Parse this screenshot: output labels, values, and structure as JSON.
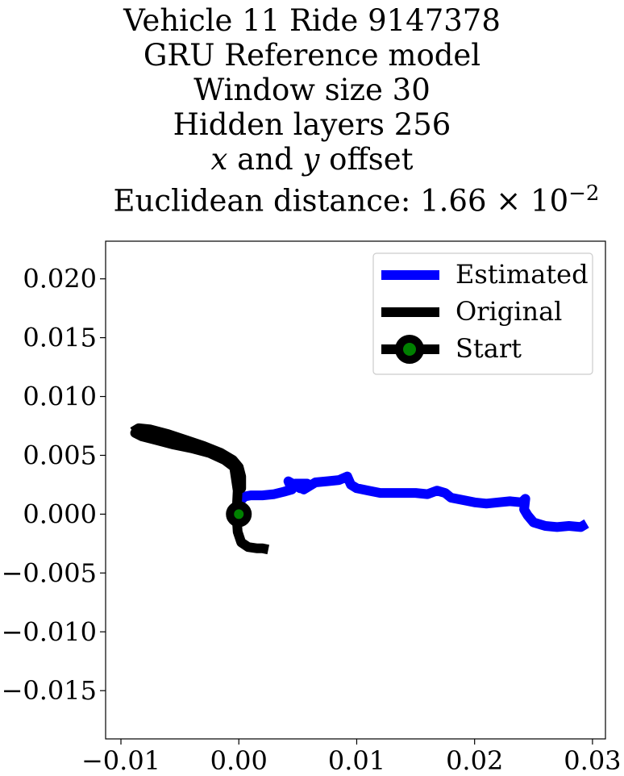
{
  "chart_data": {
    "type": "line",
    "title_lines": [
      "Vehicle 11 Ride 9147378",
      "GRU Reference model",
      "Window size 30",
      "Hidden layers 256",
      "x and y offset",
      "Euclidean distance: 1.66 × 10⁻²"
    ],
    "title_line5": {
      "var_x": "x",
      "and": " and ",
      "var_y": "y",
      "rest": " offset"
    },
    "title_line6": {
      "prefix": "Euclidean distance: 1.66 × 10",
      "exponent": "−2"
    },
    "xlabel": "",
    "ylabel": "",
    "xlim": [
      -0.0113,
      0.0311
    ],
    "ylim": [
      -0.0191,
      0.0232
    ],
    "x_ticks": [
      -0.01,
      0.0,
      0.01,
      0.02,
      0.03
    ],
    "x_tick_labels": [
      "−0.01",
      "0.00",
      "0.01",
      "0.02",
      "0.03"
    ],
    "y_ticks": [
      0.02,
      0.015,
      0.01,
      0.005,
      0.0,
      -0.005,
      -0.01,
      -0.015
    ],
    "y_tick_labels": [
      "0.020",
      "0.015",
      "0.010",
      "0.005",
      "0.000",
      "−0.005",
      "−0.010",
      "−0.015"
    ],
    "grid": false,
    "legend_position": "top-right",
    "series": [
      {
        "name": "Estimated",
        "color": "#0000ff",
        "x": [
          0.0,
          0.0005,
          0.001,
          0.002,
          0.003,
          0.0038,
          0.0045,
          0.0042,
          0.0052,
          0.0048,
          0.0058,
          0.0055,
          0.0065,
          0.0075,
          0.0085,
          0.0092,
          0.0095,
          0.01,
          0.011,
          0.012,
          0.013,
          0.014,
          0.015,
          0.016,
          0.0168,
          0.0175,
          0.018,
          0.019,
          0.02,
          0.021,
          0.022,
          0.023,
          0.024,
          0.0243,
          0.0242,
          0.0245,
          0.025,
          0.026,
          0.027,
          0.028,
          0.029,
          0.0295
        ],
        "y": [
          0.001,
          0.0015,
          0.0016,
          0.0016,
          0.0017,
          0.0019,
          0.0021,
          0.0028,
          0.0022,
          0.0026,
          0.0026,
          0.0021,
          0.0027,
          0.0028,
          0.0029,
          0.0032,
          0.0025,
          0.0022,
          0.002,
          0.0018,
          0.0018,
          0.0018,
          0.0018,
          0.0017,
          0.002,
          0.0018,
          0.0014,
          0.0012,
          0.001,
          0.0009,
          0.001,
          0.0011,
          0.001,
          0.0013,
          0.0004,
          -0.0001,
          -0.0007,
          -0.001,
          -0.0011,
          -0.001,
          -0.0011,
          -0.0008
        ]
      },
      {
        "name": "Original",
        "color": "#000000",
        "x": [
          -0.009,
          -0.0085,
          -0.0075,
          -0.006,
          -0.0045,
          -0.003,
          -0.0015,
          -0.0005,
          0.0,
          0.0002,
          0.0002,
          0.0,
          -0.0005,
          -0.0015,
          -0.003,
          -0.0045,
          -0.006,
          -0.0075,
          -0.0088,
          -0.0082,
          -0.007,
          -0.0055,
          -0.004,
          -0.0025,
          -0.0012,
          -0.0004,
          -0.0001,
          -0.0002,
          -0.0001,
          0.0002,
          0.0008,
          0.0015,
          0.002,
          0.0025
        ],
        "y": [
          0.007,
          0.0073,
          0.0072,
          0.0068,
          0.0063,
          0.0058,
          0.0052,
          0.0046,
          0.004,
          0.0032,
          0.0022,
          0.0035,
          0.0043,
          0.0049,
          0.0055,
          0.006,
          0.0064,
          0.0067,
          0.0069,
          0.0066,
          0.0063,
          0.0059,
          0.0056,
          0.0052,
          0.0046,
          0.004,
          0.002,
          0.0,
          -0.0015,
          -0.0024,
          -0.0028,
          -0.0029,
          -0.0029,
          -0.003
        ]
      },
      {
        "name": "Start",
        "color": "#000000",
        "marker_color": "#008000",
        "x": [
          0.0
        ],
        "y": [
          0.0
        ]
      }
    ]
  }
}
